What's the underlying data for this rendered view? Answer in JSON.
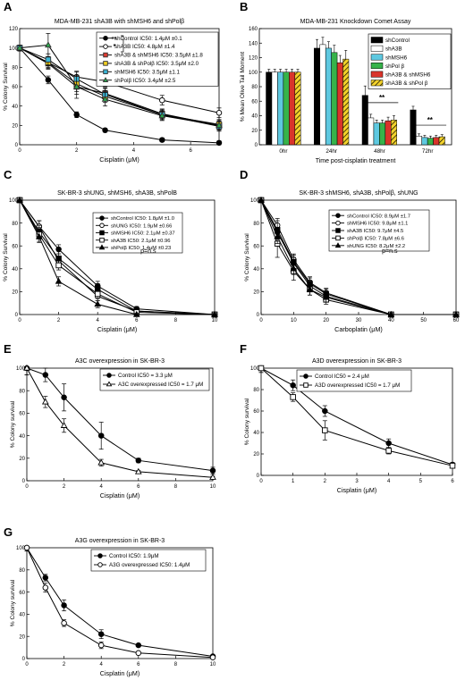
{
  "chart_data": [
    {
      "panel": "A",
      "type": "line",
      "title": "MDA-MB-231 shA3B with shMSH6 and shPolβ",
      "xlabel": "Cisplatin (μM)",
      "ylabel": "% Colony Survival",
      "xlim": [
        0,
        7
      ],
      "ylim": [
        0,
        120
      ],
      "xticks": [
        0,
        2,
        4,
        6
      ],
      "yticks": [
        0,
        20,
        40,
        60,
        80,
        100,
        120
      ],
      "legend_position": "top-right",
      "annotations": [
        {
          "text": "**"
        },
        {
          "text": "*"
        }
      ],
      "series": [
        {
          "name": "shControl IC50: 1.4μM ±0.1",
          "marker": "filled-circle",
          "color": "#000000",
          "x": [
            0,
            1,
            2,
            3,
            5,
            7
          ],
          "y": [
            100,
            67,
            31,
            15,
            5,
            2
          ],
          "err": [
            3,
            4,
            3,
            2,
            2,
            2
          ]
        },
        {
          "name": "shA3B IC50: 4.8μM ±1.4",
          "marker": "open-circle",
          "color": "#000000",
          "x": [
            0,
            1,
            2,
            3,
            5,
            7
          ],
          "y": [
            100,
            85,
            70,
            65,
            46,
            33
          ],
          "err": [
            3,
            5,
            6,
            5,
            5,
            5
          ]
        },
        {
          "name": "shA3B & shMSH6 IC50: 3.5μM ±1.8",
          "marker": "square",
          "color": "#e03c31",
          "x": [
            0,
            1,
            2,
            3,
            5,
            7
          ],
          "y": [
            100,
            84,
            60,
            53,
            32,
            20
          ],
          "err": [
            3,
            6,
            8,
            6,
            5,
            5
          ]
        },
        {
          "name": "shA3B & shPolβ IC50: 3.5μM ±2.0",
          "marker": "square",
          "color": "#f2d021",
          "x": [
            0,
            1,
            2,
            3,
            5,
            7
          ],
          "y": [
            100,
            85,
            63,
            50,
            31,
            21
          ],
          "err": [
            3,
            6,
            8,
            6,
            5,
            5
          ]
        },
        {
          "name": "shMSH6 IC50: 3.5μM ±1.1",
          "marker": "square",
          "color": "#3cb6d6",
          "x": [
            0,
            1,
            2,
            3,
            5,
            7
          ],
          "y": [
            100,
            88,
            68,
            52,
            31,
            19
          ],
          "err": [
            3,
            6,
            7,
            6,
            5,
            5
          ]
        },
        {
          "name": "shPolβ IC50: 3.4μM ±2.5",
          "marker": "triangle",
          "color": "#2fa84f",
          "x": [
            0,
            1,
            2,
            3,
            5,
            7
          ],
          "y": [
            100,
            103,
            60,
            47,
            30,
            20
          ],
          "err": [
            3,
            12,
            12,
            7,
            5,
            5
          ]
        }
      ]
    },
    {
      "panel": "B",
      "type": "bar",
      "title": "MDA-MB-231 Knockdown Comet Assay",
      "xlabel": "Time post-cisplatin treatment",
      "ylabel": "% Mean Olive Tail Moment",
      "ylim": [
        0,
        160
      ],
      "yticks": [
        0,
        20,
        40,
        60,
        80,
        100,
        120,
        140,
        160
      ],
      "categories": [
        "0hr",
        "24hr",
        "48hr",
        "72hr"
      ],
      "legend_position": "top-right",
      "annotations": [
        {
          "text": "**",
          "category": "48hr"
        },
        {
          "text": "**",
          "category": "72hr"
        }
      ],
      "series": [
        {
          "name": "shControl",
          "color": "#000000",
          "values": [
            100,
            133,
            68,
            48
          ],
          "err": [
            4,
            12,
            13,
            5
          ]
        },
        {
          "name": "shA3B",
          "color": "#ffffff",
          "values": [
            100,
            138,
            37,
            12
          ],
          "err": [
            4,
            10,
            5,
            3
          ]
        },
        {
          "name": "shMSH6",
          "color": "#5ec8e0",
          "values": [
            100,
            133,
            30,
            10
          ],
          "err": [
            4,
            9,
            4,
            3
          ]
        },
        {
          "name": "shPol β",
          "color": "#36b34a",
          "values": [
            100,
            127,
            30,
            9
          ],
          "err": [
            4,
            10,
            4,
            3
          ]
        },
        {
          "name": "shA3B & shMSH6",
          "color": "#d9342b",
          "values": [
            100,
            113,
            33,
            10
          ],
          "err": [
            4,
            10,
            5,
            3
          ]
        },
        {
          "name": "shA3B & shPol β",
          "color": "#f3d22a",
          "hatch": true,
          "values": [
            100,
            118,
            34,
            11
          ],
          "err": [
            4,
            12,
            6,
            3
          ]
        }
      ]
    },
    {
      "panel": "C",
      "type": "line",
      "title": "SK-BR-3 shUNG, shMSH6, shA3B, shPolB",
      "xlabel": "Cisplatin (μM)",
      "ylabel": "% Colony Survival",
      "xlim": [
        0,
        10
      ],
      "ylim": [
        0,
        100
      ],
      "xticks": [
        0,
        2,
        4,
        6,
        8,
        10
      ],
      "yticks": [
        0,
        20,
        40,
        60,
        80,
        100
      ],
      "legend_position": "top-right",
      "annotations": [
        {
          "text": "p=n.s"
        }
      ],
      "series": [
        {
          "name": "shControl IC50: 1.8μM ±1.0",
          "marker": "filled-circle",
          "color": "#000000",
          "x": [
            0,
            1,
            2,
            4,
            6,
            10
          ],
          "y": [
            100,
            77,
            57,
            25,
            5,
            0
          ],
          "err": [
            2,
            5,
            4,
            4,
            2,
            1
          ]
        },
        {
          "name": "shUNG IC50: 1.9μM ±0.66",
          "marker": "open-circle",
          "color": "#000000",
          "x": [
            0,
            1,
            2,
            4,
            6,
            10
          ],
          "y": [
            100,
            77,
            47,
            16,
            3,
            0
          ],
          "err": [
            2,
            5,
            4,
            4,
            2,
            1
          ]
        },
        {
          "name": "shMSH6 IC50: 2.1μM ±0.37",
          "marker": "filled-square",
          "color": "#000000",
          "x": [
            0,
            1,
            2,
            4,
            6,
            10
          ],
          "y": [
            100,
            72,
            49,
            22,
            3,
            0
          ],
          "err": [
            2,
            6,
            4,
            5,
            2,
            1
          ]
        },
        {
          "name": "shA3B IC50: 2.1μM ±0.96",
          "marker": "open-square",
          "color": "#000000",
          "x": [
            0,
            1,
            2,
            4,
            6,
            10
          ],
          "y": [
            100,
            70,
            43,
            18,
            2,
            0
          ],
          "err": [
            2,
            6,
            4,
            4,
            2,
            1
          ]
        },
        {
          "name": "shPolβ IC50: 1.4μM ±0.23",
          "marker": "filled-triangle",
          "color": "#000000",
          "x": [
            0,
            1,
            2,
            4,
            6,
            10
          ],
          "y": [
            100,
            68,
            29,
            9,
            0,
            0
          ],
          "err": [
            2,
            5,
            4,
            3,
            1,
            1
          ]
        }
      ]
    },
    {
      "panel": "D",
      "type": "line",
      "title": "SK-BR-3 shMSH6, shA3B, shPolβ, shUNG",
      "xlabel": "Carboplatin (μM)",
      "ylabel": "% Colony Survival",
      "xlim": [
        0,
        60
      ],
      "ylim": [
        0,
        100
      ],
      "xticks": [
        0,
        10,
        20,
        30,
        40,
        50,
        60
      ],
      "yticks": [
        0,
        20,
        40,
        60,
        80,
        100
      ],
      "legend_position": "top-right",
      "annotations": [
        {
          "text": "p=n.s"
        }
      ],
      "series": [
        {
          "name": "shControl IC50: 8.9μM ±1.7",
          "marker": "filled-circle",
          "color": "#000000",
          "x": [
            0,
            5,
            10,
            15,
            20,
            40,
            60
          ],
          "y": [
            100,
            72,
            45,
            25,
            16,
            0,
            0
          ],
          "err": [
            2,
            5,
            5,
            5,
            4,
            1,
            0
          ]
        },
        {
          "name": "shMSH6 IC50: 9.8μM ±1.1",
          "marker": "open-circle",
          "color": "#000000",
          "x": [
            0,
            5,
            10,
            15,
            20,
            40,
            60
          ],
          "y": [
            100,
            78,
            48,
            28,
            19,
            0,
            0
          ],
          "err": [
            2,
            6,
            5,
            5,
            4,
            1,
            0
          ]
        },
        {
          "name": "shA3B IC50: 9.7μM ±4.5",
          "marker": "filled-square",
          "color": "#000000",
          "x": [
            0,
            5,
            10,
            15,
            20,
            40,
            60
          ],
          "y": [
            100,
            74,
            46,
            27,
            18,
            0,
            0
          ],
          "err": [
            2,
            8,
            6,
            5,
            4,
            1,
            0
          ]
        },
        {
          "name": "shPolβ IC50: 7.8μM ±6.6",
          "marker": "open-square",
          "color": "#000000",
          "x": [
            0,
            5,
            10,
            15,
            20,
            40,
            60
          ],
          "y": [
            100,
            62,
            38,
            22,
            13,
            0,
            0
          ],
          "err": [
            2,
            12,
            8,
            5,
            4,
            1,
            0
          ]
        },
        {
          "name": "shUNG IC50: 8.2μM ±2.2",
          "marker": "filled-triangle",
          "color": "#000000",
          "x": [
            0,
            5,
            10,
            15,
            20,
            40,
            60
          ],
          "y": [
            100,
            68,
            40,
            22,
            15,
            0,
            0
          ],
          "err": [
            2,
            6,
            5,
            5,
            4,
            1,
            0
          ]
        }
      ]
    },
    {
      "panel": "E",
      "type": "line",
      "title": "A3C overexpression in SK-BR-3",
      "xlabel": "Cisplatin (μM)",
      "ylabel": "% Colony survival",
      "xlim": [
        0,
        10
      ],
      "ylim": [
        0,
        100
      ],
      "xticks": [
        0,
        2,
        4,
        6,
        8,
        10
      ],
      "yticks": [
        0,
        20,
        40,
        60,
        80,
        100
      ],
      "legend_position": "top-right",
      "series": [
        {
          "name": "Control  IC50 = 3.3 μM",
          "marker": "filled-circle",
          "color": "#000000",
          "x": [
            0,
            1,
            2,
            4,
            6,
            10
          ],
          "y": [
            100,
            94,
            74,
            40,
            18,
            9
          ],
          "err": [
            6,
            6,
            12,
            12,
            2,
            3
          ]
        },
        {
          "name": "A3C overexpressed  IC50 = 1.7 μM",
          "marker": "open-triangle",
          "color": "#000000",
          "x": [
            0,
            1,
            2,
            4,
            6,
            10
          ],
          "y": [
            100,
            70,
            49,
            16,
            8,
            3
          ],
          "err": [
            6,
            5,
            6,
            3,
            1,
            1
          ]
        }
      ]
    },
    {
      "panel": "F",
      "type": "line",
      "title": "A3D overexpression in SK-BR-3",
      "xlabel": "Cisplatin (μM)",
      "ylabel": "% Colony survival",
      "xlim": [
        0,
        6
      ],
      "ylim": [
        0,
        100
      ],
      "xticks": [
        0,
        1,
        2,
        3,
        4,
        5,
        6
      ],
      "yticks": [
        0,
        20,
        40,
        60,
        80,
        100
      ],
      "legend_position": "top-right",
      "series": [
        {
          "name": "Control  IC50 = 2.4 μM",
          "marker": "filled-circle",
          "color": "#000000",
          "x": [
            0,
            1,
            2,
            4,
            6
          ],
          "y": [
            100,
            84,
            60,
            30,
            10
          ],
          "err": [
            4,
            5,
            5,
            4,
            2
          ]
        },
        {
          "name": "A3D overexpressed  IC50 = 1.7 μM",
          "marker": "open-square",
          "color": "#000000",
          "x": [
            0,
            1,
            2,
            4,
            6
          ],
          "y": [
            100,
            73,
            42,
            23,
            9
          ],
          "err": [
            4,
            4,
            9,
            3,
            2
          ]
        }
      ]
    },
    {
      "panel": "G",
      "type": "line",
      "title": "A3G overexpression in SK-BR-3",
      "xlabel": "Cisplatin (μM)",
      "ylabel": "% Colony survival",
      "xlim": [
        0,
        10
      ],
      "ylim": [
        0,
        100
      ],
      "xticks": [
        0,
        2,
        4,
        6,
        8,
        10
      ],
      "yticks": [
        0,
        20,
        40,
        60,
        80,
        100
      ],
      "legend_position": "top-right",
      "series": [
        {
          "name": "Control IC50: 1.9μM",
          "marker": "filled-circle",
          "color": "#000000",
          "x": [
            0,
            1,
            2,
            4,
            6,
            10
          ],
          "y": [
            100,
            73,
            48,
            22,
            12,
            2
          ],
          "err": [
            3,
            3,
            5,
            4,
            1,
            1
          ]
        },
        {
          "name": "A3G overexpressed IC50: 1.4μM",
          "marker": "open-circle",
          "color": "#000000",
          "x": [
            0,
            1,
            2,
            4,
            6,
            10
          ],
          "y": [
            100,
            64,
            32,
            12,
            5,
            1
          ],
          "err": [
            3,
            4,
            3,
            3,
            1,
            1
          ]
        }
      ]
    }
  ]
}
